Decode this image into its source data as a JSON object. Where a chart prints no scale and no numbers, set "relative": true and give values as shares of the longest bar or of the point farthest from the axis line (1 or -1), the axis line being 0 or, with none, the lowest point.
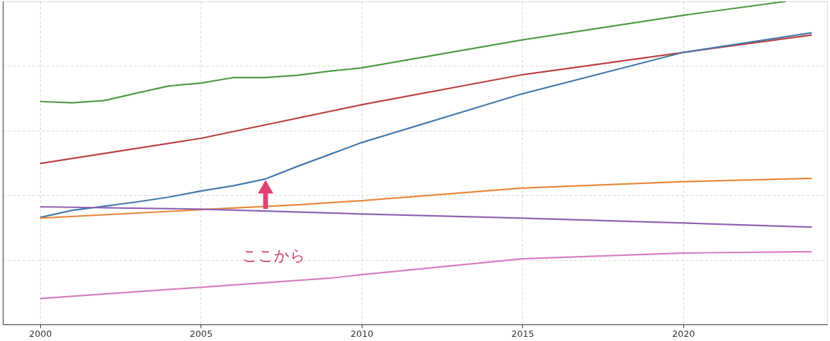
{
  "chart_data": {
    "type": "line",
    "relative": true,
    "xlim": [
      1998.84,
      2024.48
    ],
    "xticks": [
      2000,
      2005,
      2010,
      2015,
      2020
    ],
    "grid": true,
    "marker": "none",
    "line_style": "solid",
    "annotations": [
      "ここから"
    ],
    "series": [
      {
        "color": "#4e9a43",
        "x": [
          2000,
          2001,
          2002,
          2003,
          2004,
          2005,
          2006,
          2007,
          2008,
          2009,
          2010,
          2015,
          2020,
          2023.2
        ],
        "values": [
          0.69,
          0.686,
          0.693,
          0.716,
          0.738,
          0.747,
          0.764,
          0.764,
          0.771,
          0.784,
          0.794,
          0.881,
          0.957,
          1
        ]
      },
      {
        "color": "#b9413e",
        "x": [
          2000,
          2005,
          2010,
          2015,
          2020,
          2024
        ],
        "values": [
          0.498,
          0.576,
          0.68,
          0.773,
          0.842,
          0.896
        ]
      },
      {
        "color": "#4379aa",
        "x": [
          2000,
          2001,
          2002,
          2003,
          2004,
          2005,
          2006,
          2007,
          2008,
          2009,
          2010,
          2015,
          2020,
          2024
        ],
        "values": [
          0.331,
          0.353,
          0.366,
          0.379,
          0.394,
          0.413,
          0.429,
          0.45,
          0.489,
          0.526,
          0.563,
          0.714,
          0.842,
          0.903
        ]
      },
      {
        "color": "#e8883a",
        "x": [
          2000,
          2005,
          2008,
          2010,
          2015,
          2020,
          2024
        ],
        "values": [
          0.329,
          0.355,
          0.37,
          0.383,
          0.422,
          0.442,
          0.452
        ]
      },
      {
        "color": "#8e62b0",
        "x": [
          2000,
          2005,
          2010,
          2015,
          2020,
          2024
        ],
        "values": [
          0.364,
          0.357,
          0.342,
          0.329,
          0.314,
          0.301
        ]
      },
      {
        "color": "#d67dc2",
        "x": [
          2000,
          2005,
          2009,
          2010,
          2015,
          2020,
          2024
        ],
        "values": [
          0.08,
          0.115,
          0.143,
          0.154,
          0.203,
          0.221,
          0.225
        ]
      }
    ]
  }
}
